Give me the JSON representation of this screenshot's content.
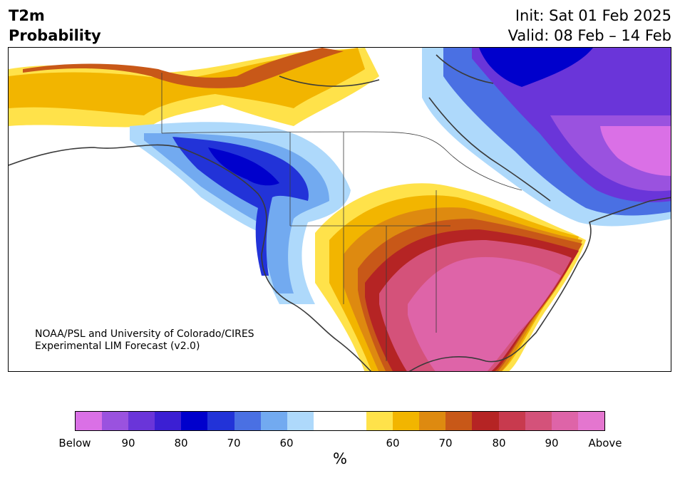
{
  "header": {
    "title_line1": "T2m",
    "title_line2": "Probability",
    "init": "Init: Sat 01 Feb 2025",
    "valid": "Valid: 08 Feb – 14 Feb"
  },
  "credit": {
    "line1": "NOAA/PSL and University of Colorado/CIRES",
    "line2": "Experimental LIM Forecast (v2.0)"
  },
  "colorbar": {
    "unit": "%",
    "colors": [
      "#da70e6",
      "#9a52df",
      "#6a35d9",
      "#3b1fd3",
      "#0000cc",
      "#2233d8",
      "#4a70e3",
      "#72aaf0",
      "#aed9fb",
      "#ffffff",
      "#ffffff",
      "#ffe24a",
      "#f2b500",
      "#de8a10",
      "#c85818",
      "#b52424",
      "#c83a4e",
      "#d4527a",
      "#de64a8",
      "#e476cf"
    ],
    "tick_labels": [
      "Below",
      "90",
      "80",
      "70",
      "60",
      "60",
      "70",
      "80",
      "90",
      "Above"
    ]
  },
  "colors": {
    "cold_extreme": "#0000cc",
    "warm_extreme": "#e476cf",
    "land_outline": "#3a3a3a"
  }
}
